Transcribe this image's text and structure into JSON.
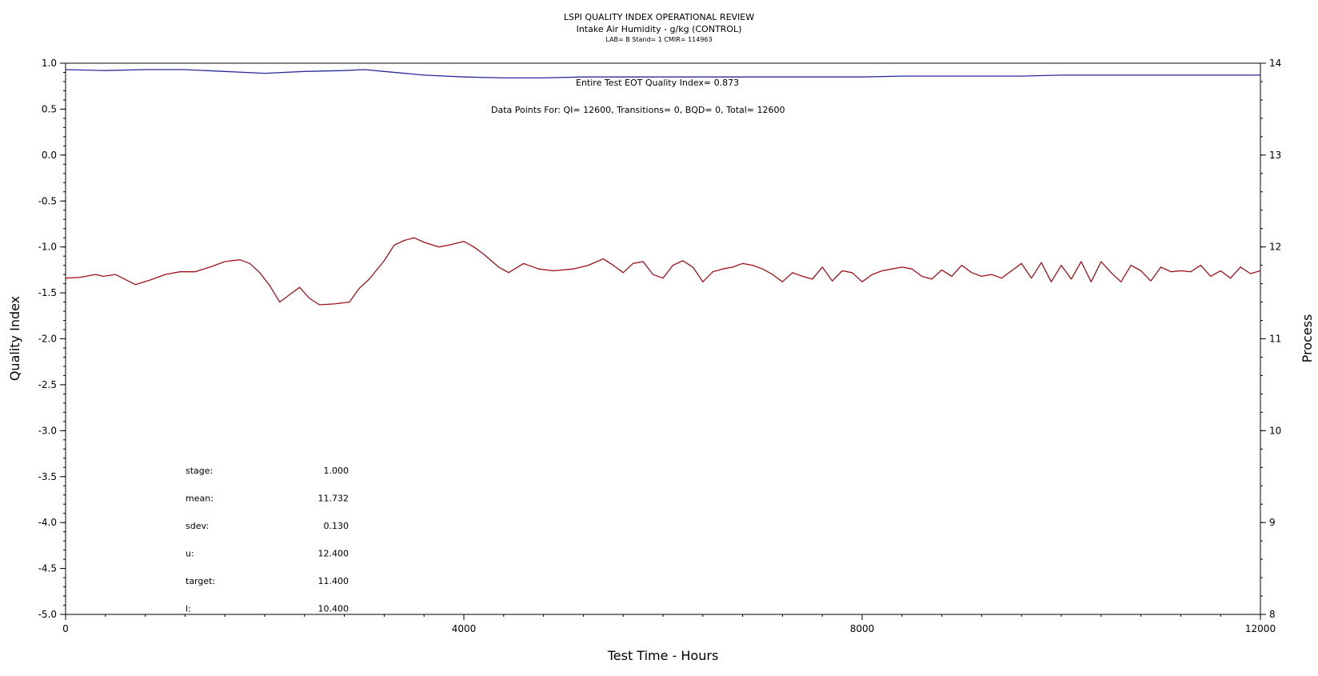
{
  "chart_data": {
    "type": "line",
    "title": "LSPI QUALITY INDEX OPERATIONAL REVIEW",
    "subtitle": "Intake Air Humidity - g/kg (CONTROL)",
    "subtitle2": "LAB= B Stand= 1 CMIR= 114963",
    "xlabel": "Test Time - Hours",
    "ylabel": "Quality Index",
    "y2label": "Process",
    "xlim": [
      0,
      12000
    ],
    "ylim": [
      -5.0,
      1.0
    ],
    "y2lim": [
      8,
      14
    ],
    "x_ticks": [
      0,
      4000,
      8000,
      12000
    ],
    "y_ticks": [
      1.0,
      0.5,
      0.0,
      -0.5,
      -1.0,
      -1.5,
      -2.0,
      -2.5,
      -3.0,
      -3.5,
      -4.0,
      -4.5,
      -5.0
    ],
    "y2_ticks": [
      14,
      13,
      12,
      11,
      10,
      9,
      8
    ],
    "x_tick_labels": [
      "0",
      "4000",
      "8000",
      "12000"
    ],
    "y_tick_labels": [
      "1.0",
      "0.5",
      "0.0",
      "-0.5",
      "-1.0",
      "-1.5",
      "-2.0",
      "-2.5",
      "-3.0",
      "-3.5",
      "-4.0",
      "-4.5",
      "-5.0"
    ],
    "y2_tick_labels": [
      "14",
      "13",
      "12",
      "11",
      "10",
      "9",
      "8"
    ],
    "annotation_qi": "Entire Test EOT Quality Index=   0.873",
    "annotation_points": "Data Points For: QI= 12600, Transitions=     0, BQD=     0, Total= 12600",
    "stats": [
      {
        "label": "stage:",
        "value": "1.000"
      },
      {
        "label": "mean:",
        "value": "11.732"
      },
      {
        "label": "sdev:",
        "value": "0.130"
      },
      {
        "label": "u:",
        "value": "12.400"
      },
      {
        "label": "target:",
        "value": "11.400"
      },
      {
        "label": "l:",
        "value": "10.400"
      }
    ],
    "series": [
      {
        "axis": "left",
        "color": "#2b2b9a",
        "x": [
          0,
          400,
          800,
          1200,
          1600,
          2000,
          2400,
          2800,
          3000,
          3200,
          3600,
          4000,
          4400,
          4800,
          5200,
          5600,
          6000,
          6400,
          6800,
          7200,
          7600,
          8000,
          8400,
          8800,
          9200,
          9600,
          10000,
          10400,
          10800,
          11200,
          11600,
          12000
        ],
        "values": [
          0.93,
          0.92,
          0.93,
          0.93,
          0.91,
          0.89,
          0.91,
          0.92,
          0.93,
          0.91,
          0.87,
          0.85,
          0.84,
          0.84,
          0.85,
          0.85,
          0.85,
          0.85,
          0.85,
          0.85,
          0.85,
          0.85,
          0.86,
          0.86,
          0.86,
          0.86,
          0.87,
          0.87,
          0.87,
          0.87,
          0.87,
          0.87
        ]
      },
      {
        "axis": "right",
        "color": "#a0101a",
        "x": [
          0,
          150,
          300,
          380,
          500,
          700,
          850,
          1000,
          1150,
          1300,
          1450,
          1600,
          1750,
          1850,
          1950,
          2050,
          2150,
          2250,
          2350,
          2450,
          2550,
          2700,
          2850,
          2950,
          3050,
          3200,
          3300,
          3400,
          3500,
          3600,
          3750,
          3850,
          4000,
          4100,
          4200,
          4350,
          4450,
          4600,
          4750,
          4900,
          5100,
          5250,
          5400,
          5500,
          5600,
          5700,
          5800,
          5900,
          6000,
          6100,
          6200,
          6300,
          6400,
          6500,
          6600,
          6700,
          6800,
          6900,
          7000,
          7100,
          7200,
          7300,
          7400,
          7500,
          7600,
          7700,
          7800,
          7900,
          8000,
          8100,
          8200,
          8300,
          8400,
          8500,
          8600,
          8700,
          8800,
          8900,
          9000,
          9100,
          9200,
          9300,
          9400,
          9500,
          9600,
          9700,
          9800,
          9900,
          10000,
          10100,
          10200,
          10300,
          10400,
          10500,
          10600,
          10700,
          10800,
          10900,
          11000,
          11100,
          11200,
          11300,
          11400,
          11500,
          11600,
          11700,
          11800,
          11900,
          12000
        ],
        "values": [
          11.66,
          11.67,
          11.7,
          11.68,
          11.7,
          11.59,
          11.64,
          11.7,
          11.73,
          11.73,
          11.78,
          11.84,
          11.86,
          11.82,
          11.72,
          11.58,
          11.4,
          11.48,
          11.56,
          11.44,
          11.37,
          11.38,
          11.4,
          11.55,
          11.65,
          11.85,
          12.02,
          12.07,
          12.1,
          12.05,
          12.0,
          12.02,
          12.06,
          12.0,
          11.92,
          11.78,
          11.72,
          11.82,
          11.76,
          11.74,
          11.76,
          11.8,
          11.87,
          11.8,
          11.72,
          11.82,
          11.84,
          11.7,
          11.66,
          11.8,
          11.85,
          11.78,
          11.62,
          11.73,
          11.76,
          11.78,
          11.82,
          11.8,
          11.76,
          11.7,
          11.62,
          11.72,
          11.68,
          11.65,
          11.78,
          11.63,
          11.74,
          11.72,
          11.62,
          11.7,
          11.74,
          11.76,
          11.78,
          11.76,
          11.68,
          11.65,
          11.75,
          11.68,
          11.8,
          11.72,
          11.68,
          11.7,
          11.66,
          11.74,
          11.82,
          11.66,
          11.83,
          11.62,
          11.8,
          11.65,
          11.84,
          11.62,
          11.84,
          11.72,
          11.62,
          11.8,
          11.74,
          11.63,
          11.78,
          11.73,
          11.74,
          11.73,
          11.8,
          11.68,
          11.74,
          11.66,
          11.78,
          11.71,
          11.74
        ]
      }
    ]
  }
}
